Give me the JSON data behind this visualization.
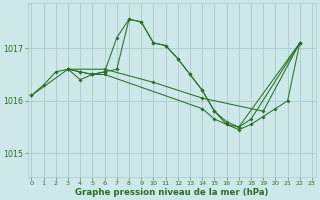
{
  "xlabel": "Graphe pression niveau de la mer (hPa)",
  "bg_color": "#cce8e8",
  "grid_color": "#aacccc",
  "line_color": "#2a6e2a",
  "ylim": [
    1014.55,
    1017.85
  ],
  "yticks": [
    1015,
    1016,
    1017
  ],
  "xlim": [
    -0.3,
    23.3
  ],
  "xticks": [
    0,
    1,
    2,
    3,
    4,
    5,
    6,
    7,
    8,
    9,
    10,
    11,
    12,
    13,
    14,
    15,
    16,
    17,
    18,
    19,
    20,
    21,
    22,
    23
  ],
  "series": [
    {
      "x": [
        0,
        1,
        2,
        3,
        4,
        5,
        6,
        7,
        8,
        9,
        10,
        11,
        12,
        13,
        14,
        15,
        16,
        17,
        18,
        22
      ],
      "y": [
        1016.1,
        1016.3,
        1016.55,
        1016.6,
        1016.55,
        1016.5,
        1016.55,
        1017.2,
        1017.55,
        1017.5,
        1017.1,
        1017.05,
        1016.8,
        1016.5,
        1016.2,
        1015.8,
        1015.6,
        1015.5,
        1015.65,
        1017.1
      ]
    },
    {
      "x": [
        3,
        4,
        5,
        6,
        7,
        8,
        9,
        10,
        11,
        12,
        13,
        14,
        15,
        16,
        17,
        22
      ],
      "y": [
        1016.6,
        1016.4,
        1016.5,
        1016.55,
        1016.6,
        1017.55,
        1017.5,
        1017.1,
        1017.05,
        1016.8,
        1016.5,
        1016.2,
        1015.8,
        1015.55,
        1015.5,
        1017.1
      ]
    },
    {
      "x": [
        0,
        3,
        6,
        10,
        14,
        19,
        22
      ],
      "y": [
        1016.1,
        1016.6,
        1016.6,
        1016.35,
        1016.05,
        1015.8,
        1017.1
      ]
    },
    {
      "x": [
        3,
        4,
        5,
        6,
        14,
        15,
        16,
        17,
        18,
        19,
        20,
        21,
        22
      ],
      "y": [
        1016.6,
        1016.55,
        1016.5,
        1016.5,
        1015.85,
        1015.65,
        1015.55,
        1015.45,
        1015.55,
        1015.7,
        1015.85,
        1016.0,
        1017.1
      ]
    }
  ]
}
